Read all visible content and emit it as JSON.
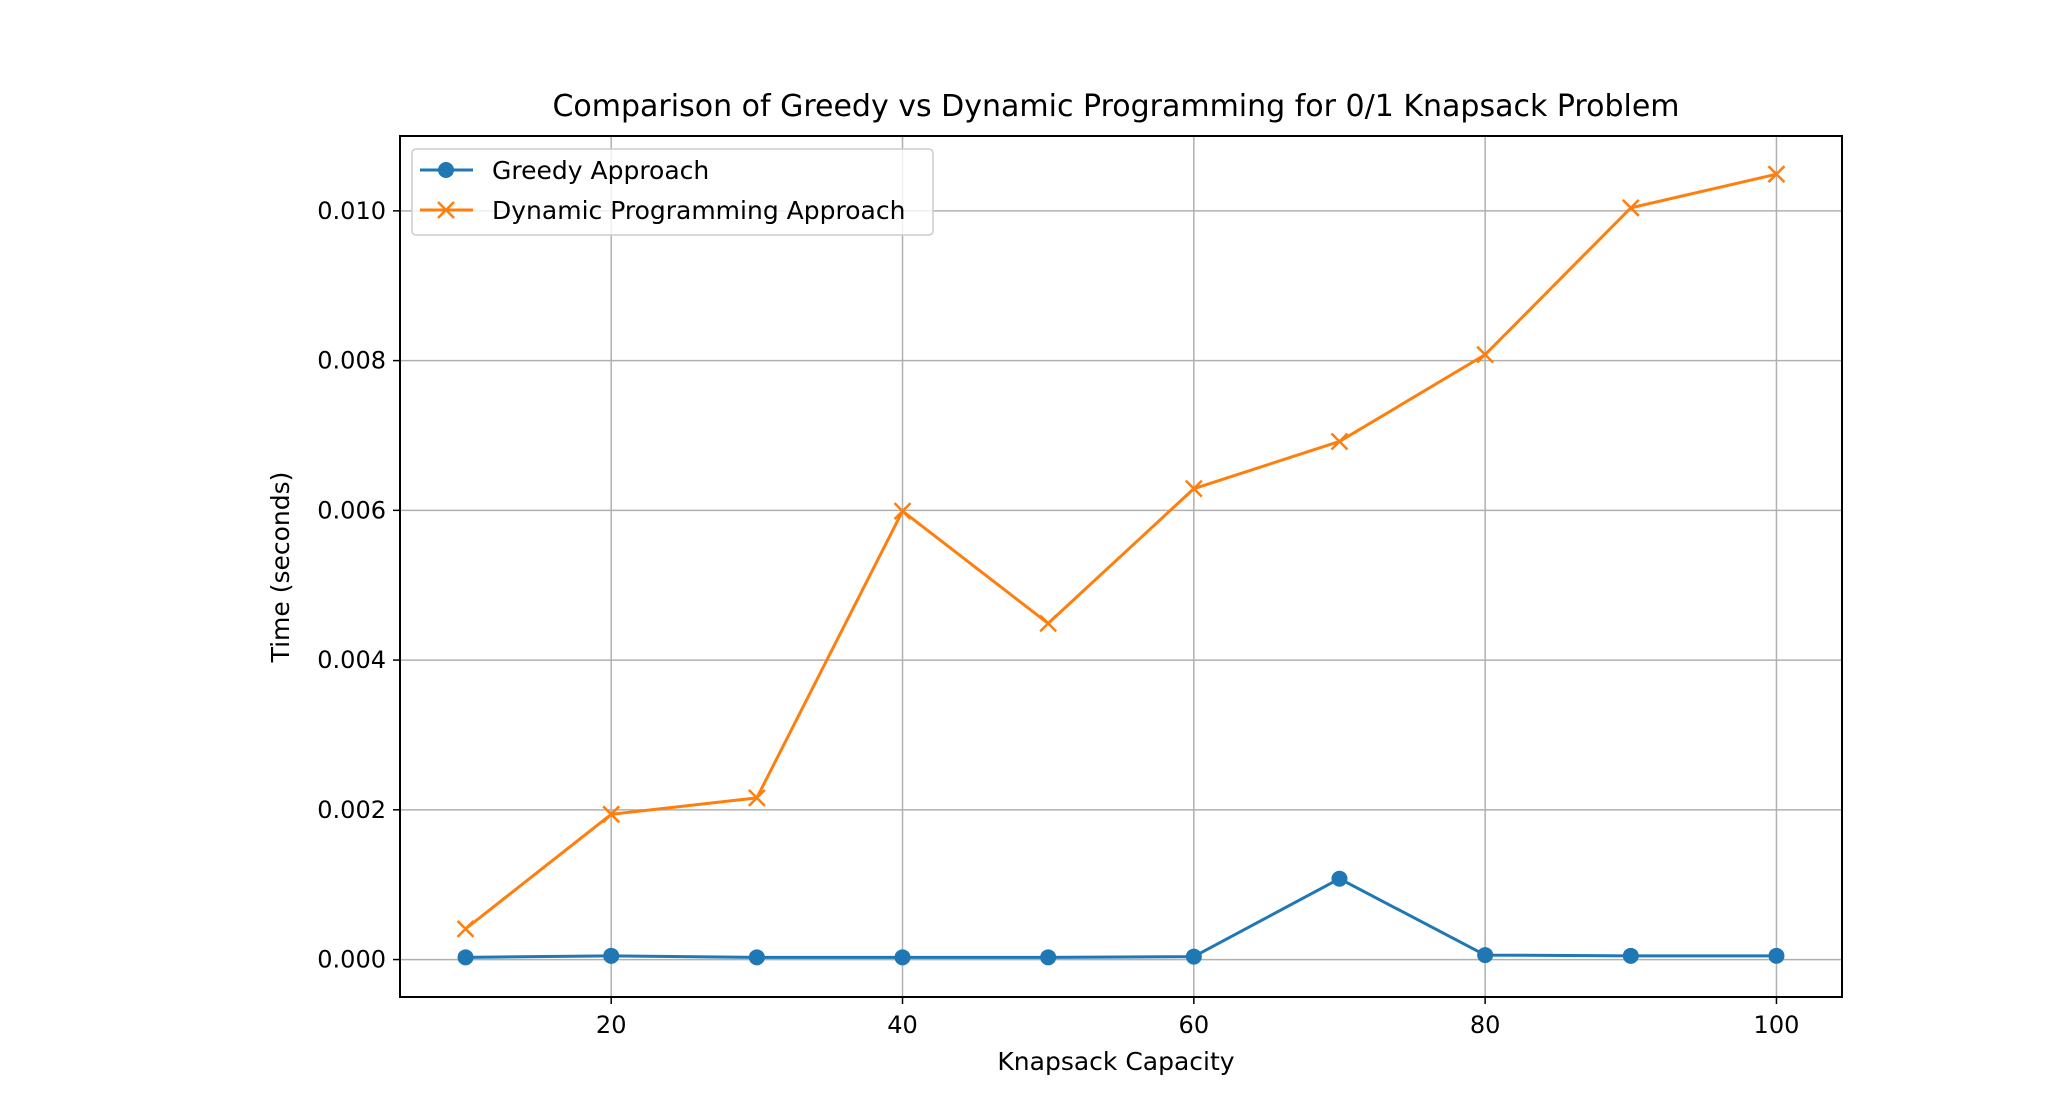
{
  "chart_data": {
    "type": "line",
    "title": "Comparison of Greedy vs Dynamic Programming for 0/1 Knapsack Problem",
    "xlabel": "Knapsack Capacity",
    "ylabel": "Time (seconds)",
    "xlim": [
      5.5,
      104.5
    ],
    "ylim": [
      -0.0005,
      0.011
    ],
    "xticks": [
      20,
      40,
      60,
      80,
      100
    ],
    "xtick_labels": [
      "20",
      "40",
      "60",
      "80",
      "100"
    ],
    "yticks": [
      0.0,
      0.002,
      0.004,
      0.006,
      0.008,
      0.01
    ],
    "ytick_labels": [
      "0.000",
      "0.002",
      "0.004",
      "0.006",
      "0.008",
      "0.010"
    ],
    "grid": true,
    "legend_position": "upper-left",
    "x": [
      10,
      20,
      30,
      40,
      50,
      60,
      70,
      80,
      90,
      100
    ],
    "series": [
      {
        "name": "Greedy Approach",
        "color": "#1f77b4",
        "marker": "circle",
        "values": [
          3e-05,
          5e-05,
          3e-05,
          3e-05,
          3e-05,
          4e-05,
          0.00108,
          6e-05,
          5e-05,
          5e-05
        ]
      },
      {
        "name": "Dynamic Programming Approach",
        "color": "#ff7f0e",
        "marker": "x",
        "values": [
          0.00041,
          0.00194,
          0.00216,
          0.00599,
          0.00449,
          0.00629,
          0.00692,
          0.00808,
          0.01004,
          0.01049
        ]
      }
    ]
  }
}
